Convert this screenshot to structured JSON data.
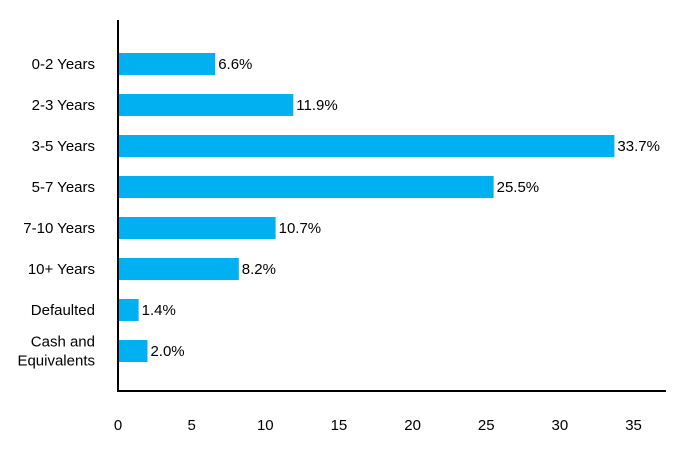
{
  "chart_data": {
    "type": "bar",
    "orientation": "horizontal",
    "categories": [
      [
        "0-2 Years"
      ],
      [
        "2-3 Years"
      ],
      [
        "3-5 Years"
      ],
      [
        "5-7 Years"
      ],
      [
        "7-10 Years"
      ],
      [
        "10+ Years"
      ],
      [
        "Defaulted"
      ],
      [
        "Cash and",
        "Equivalents"
      ]
    ],
    "values": [
      6.6,
      11.9,
      33.7,
      25.5,
      10.7,
      8.2,
      1.4,
      2.0
    ],
    "data_labels": [
      "6.6%",
      "11.9%",
      "33.7%",
      "25.5%",
      "10.7%",
      "8.2%",
      "1.4%",
      "2.0%"
    ],
    "x_ticks": [
      0,
      5,
      10,
      15,
      20,
      25,
      30,
      35
    ],
    "xlim": [
      0,
      37
    ],
    "title": "",
    "xlabel": "",
    "ylabel": "",
    "grid": false,
    "legend": "none",
    "bar_color": "#00B0F0",
    "axis_color": "#000000"
  }
}
